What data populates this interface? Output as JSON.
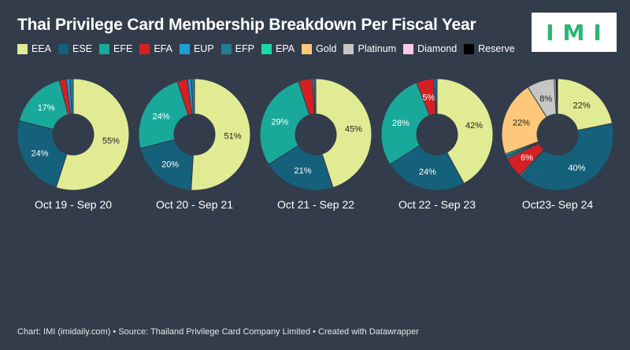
{
  "header": {
    "title": "Thai Privilege Card Membership Breakdown Per Fiscal Year",
    "logo_text": "IMI"
  },
  "legend": [
    {
      "label": "EEA",
      "color": "#e1eb94"
    },
    {
      "label": "ESE",
      "color": "#15607a"
    },
    {
      "label": "EFE",
      "color": "#18a99a"
    },
    {
      "label": "EFA",
      "color": "#d42022"
    },
    {
      "label": "EUP",
      "color": "#1d9fd6"
    },
    {
      "label": "EFP",
      "color": "#237c96"
    },
    {
      "label": "EPA",
      "color": "#1cd8a8"
    },
    {
      "label": "Gold",
      "color": "#fec779"
    },
    {
      "label": "Platinum",
      "color": "#c6c6c6"
    },
    {
      "label": "Diamond",
      "color": "#fccae6"
    },
    {
      "label": "Reserve",
      "color": "#000000"
    }
  ],
  "chart_data": [
    {
      "type": "pie",
      "title": "Oct 19 - Sep 20",
      "categories": [
        "EEA",
        "ESE",
        "EFE",
        "EFA",
        "EUP",
        "EFP"
      ],
      "values": [
        55,
        24,
        17,
        2,
        1,
        1
      ],
      "labels": [
        "55%",
        "24%",
        "17%",
        "",
        "",
        ""
      ]
    },
    {
      "type": "pie",
      "title": "Oct 20 - Sep 21",
      "categories": [
        "EEA",
        "ESE",
        "EFE",
        "EFA",
        "EUP",
        "EFP"
      ],
      "values": [
        51,
        20,
        24,
        3,
        1,
        1
      ],
      "labels": [
        "51%",
        "20%",
        "24%",
        "",
        "",
        ""
      ]
    },
    {
      "type": "pie",
      "title": "Oct 21 - Sep 22",
      "categories": [
        "EEA",
        "ESE",
        "EFE",
        "EFA",
        "EUP",
        "EFP"
      ],
      "values": [
        45,
        21,
        29,
        4,
        0.5,
        0.5
      ],
      "labels": [
        "45%",
        "21%",
        "29%",
        "",
        "",
        ""
      ]
    },
    {
      "type": "pie",
      "title": "Oct 22 - Sep 23",
      "categories": [
        "EEA",
        "ESE",
        "EFE",
        "EFA",
        "EUP",
        "EFP"
      ],
      "values": [
        42,
        24,
        28,
        5,
        0.5,
        0.5
      ],
      "labels": [
        "42%",
        "24%",
        "28%",
        "5%",
        "",
        ""
      ]
    },
    {
      "type": "pie",
      "title": "Oct23- Sep 24",
      "categories": [
        "EEA",
        "ESE",
        "EFE",
        "EFA",
        "EUP",
        "EFP",
        "EPA",
        "Gold",
        "Platinum",
        "Diamond",
        "Reserve"
      ],
      "values": [
        22,
        40,
        0.5,
        6,
        0.5,
        0.5,
        0.5,
        22,
        8,
        0.5,
        0.5
      ],
      "labels": [
        "22%",
        "40%",
        "",
        "6%",
        "",
        "",
        "",
        "22%",
        "8%",
        "",
        ""
      ]
    }
  ],
  "footer": {
    "text": "Chart: IMI (imidaily.com) • Source: Thailand Privilege Card Company Limited • Created with Datawrapper"
  }
}
